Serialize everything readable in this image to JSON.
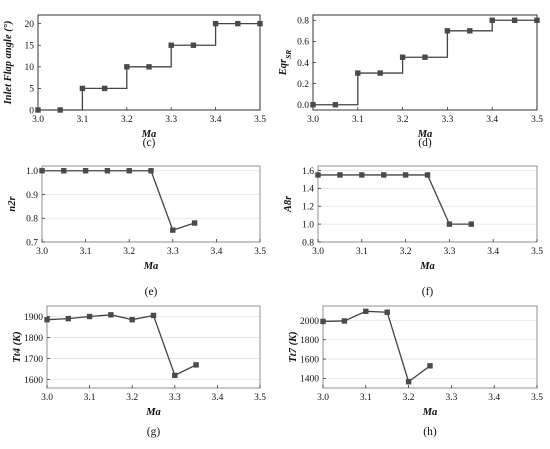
{
  "chart_data": [
    {
      "type": "line",
      "panel_label": "(c)",
      "xlabel": "Ma",
      "ylabel": "Inlet Flap angle (°)",
      "xlim": [
        3.0,
        3.5
      ],
      "ylim": [
        0,
        22
      ],
      "xticks": [
        "3.0",
        "3.1",
        "3.2",
        "3.3",
        "3.4",
        "3.5"
      ],
      "xtick_values": [
        3.0,
        3.1,
        3.2,
        3.3,
        3.4,
        3.5
      ],
      "yticks": [
        "0",
        "5",
        "10",
        "15",
        "20"
      ],
      "ytick_values": [
        0,
        5,
        10,
        15,
        20
      ],
      "grid": false,
      "line_style": "steps-post",
      "color": "#444444",
      "series": [
        {
          "x": [
            3.0,
            3.05,
            3.1,
            3.15,
            3.2,
            3.25,
            3.3,
            3.35,
            3.4,
            3.45,
            3.5
          ],
          "y": [
            0,
            0,
            5,
            5,
            10,
            10,
            15,
            15,
            20,
            20,
            20
          ]
        }
      ]
    },
    {
      "type": "line",
      "panel_label": "(d)",
      "xlabel": "Ma",
      "ylabel": "Eqr_SR",
      "xlim": [
        3.0,
        3.5
      ],
      "ylim": [
        -0.05,
        0.85
      ],
      "xticks": [
        "3.0",
        "3.1",
        "3.2",
        "3.3",
        "3.4",
        "3.5"
      ],
      "xtick_values": [
        3.0,
        3.1,
        3.2,
        3.3,
        3.4,
        3.5
      ],
      "yticks": [
        "0.0",
        "0.2",
        "0.4",
        "0.6",
        "0.8"
      ],
      "ytick_values": [
        0.0,
        0.2,
        0.4,
        0.6,
        0.8
      ],
      "grid": false,
      "line_style": "steps-post",
      "color": "#444444",
      "series": [
        {
          "x": [
            3.0,
            3.05,
            3.1,
            3.15,
            3.2,
            3.25,
            3.3,
            3.35,
            3.4,
            3.45,
            3.5
          ],
          "y": [
            0.0,
            0.0,
            0.3,
            0.3,
            0.45,
            0.45,
            0.7,
            0.7,
            0.8,
            0.8,
            0.8
          ]
        }
      ]
    },
    {
      "type": "line",
      "panel_label": "(e)",
      "xlabel": "Ma",
      "ylabel": "n2r",
      "xlim": [
        3.0,
        3.5
      ],
      "ylim": [
        0.7,
        1.02
      ],
      "xticks": [
        "3.0",
        "3.1",
        "3.2",
        "3.3",
        "3.4",
        "3.5"
      ],
      "xtick_values": [
        3.0,
        3.1,
        3.2,
        3.3,
        3.4,
        3.5
      ],
      "yticks": [
        "0.7",
        "0.8",
        "0.9",
        "1.0"
      ],
      "ytick_values": [
        0.7,
        0.8,
        0.9,
        1.0
      ],
      "grid": true,
      "line_style": "straight",
      "color": "#444444",
      "series": [
        {
          "x": [
            3.0,
            3.05,
            3.1,
            3.15,
            3.2,
            3.25,
            3.3,
            3.35
          ],
          "y": [
            1.0,
            1.0,
            1.0,
            1.0,
            1.0,
            1.0,
            0.75,
            0.78
          ]
        }
      ]
    },
    {
      "type": "line",
      "panel_label": "(f)",
      "xlabel": "Ma",
      "ylabel": "A8r",
      "xlim": [
        3.0,
        3.5
      ],
      "ylim": [
        0.8,
        1.65
      ],
      "xticks": [
        "3.0",
        "3.1",
        "3.2",
        "3.3",
        "3.4",
        "3.5"
      ],
      "xtick_values": [
        3.0,
        3.1,
        3.2,
        3.3,
        3.4,
        3.5
      ],
      "yticks": [
        "0.8",
        "1.0",
        "1.2",
        "1.4",
        "1.6"
      ],
      "ytick_values": [
        0.8,
        1.0,
        1.2,
        1.4,
        1.6
      ],
      "grid": true,
      "line_style": "straight",
      "color": "#444444",
      "series": [
        {
          "x": [
            3.0,
            3.05,
            3.1,
            3.15,
            3.2,
            3.25,
            3.3,
            3.35
          ],
          "y": [
            1.55,
            1.55,
            1.55,
            1.55,
            1.55,
            1.55,
            1.0,
            1.0
          ]
        }
      ]
    },
    {
      "type": "line",
      "panel_label": "(g)",
      "xlabel": "Ma",
      "ylabel": "Tt4 (K)",
      "xlim": [
        3.0,
        3.5
      ],
      "ylim": [
        1560,
        1950
      ],
      "xticks": [
        "3.0",
        "3.1",
        "3.2",
        "3.3",
        "3.4",
        "3.5"
      ],
      "xtick_values": [
        3.0,
        3.1,
        3.2,
        3.3,
        3.4,
        3.5
      ],
      "yticks": [
        "1600",
        "1700",
        "1800",
        "1900"
      ],
      "ytick_values": [
        1600,
        1700,
        1800,
        1900
      ],
      "grid": true,
      "line_style": "straight",
      "color": "#444444",
      "series": [
        {
          "x": [
            3.0,
            3.05,
            3.1,
            3.15,
            3.2,
            3.25,
            3.3,
            3.35
          ],
          "y": [
            1885,
            1890,
            1900,
            1908,
            1885,
            1905,
            1620,
            1670
          ]
        }
      ]
    },
    {
      "type": "line",
      "panel_label": "(h)",
      "xlabel": "Ma",
      "ylabel": "Tt7 (K)",
      "xlim": [
        3.0,
        3.5
      ],
      "ylim": [
        1300,
        2150
      ],
      "xticks": [
        "3.0",
        "3.1",
        "3.2",
        "3.3",
        "3.4",
        "3.5"
      ],
      "xtick_values": [
        3.0,
        3.1,
        3.2,
        3.3,
        3.4,
        3.5
      ],
      "yticks": [
        "1400",
        "1600",
        "1800",
        "2000"
      ],
      "ytick_values": [
        1400,
        1600,
        1800,
        2000
      ],
      "grid": true,
      "line_style": "straight",
      "color": "#444444",
      "series": [
        {
          "x": [
            3.0,
            3.05,
            3.1,
            3.15,
            3.2,
            3.25
          ],
          "y": [
            1990,
            1995,
            2095,
            2085,
            1365,
            1530
          ]
        }
      ]
    }
  ]
}
